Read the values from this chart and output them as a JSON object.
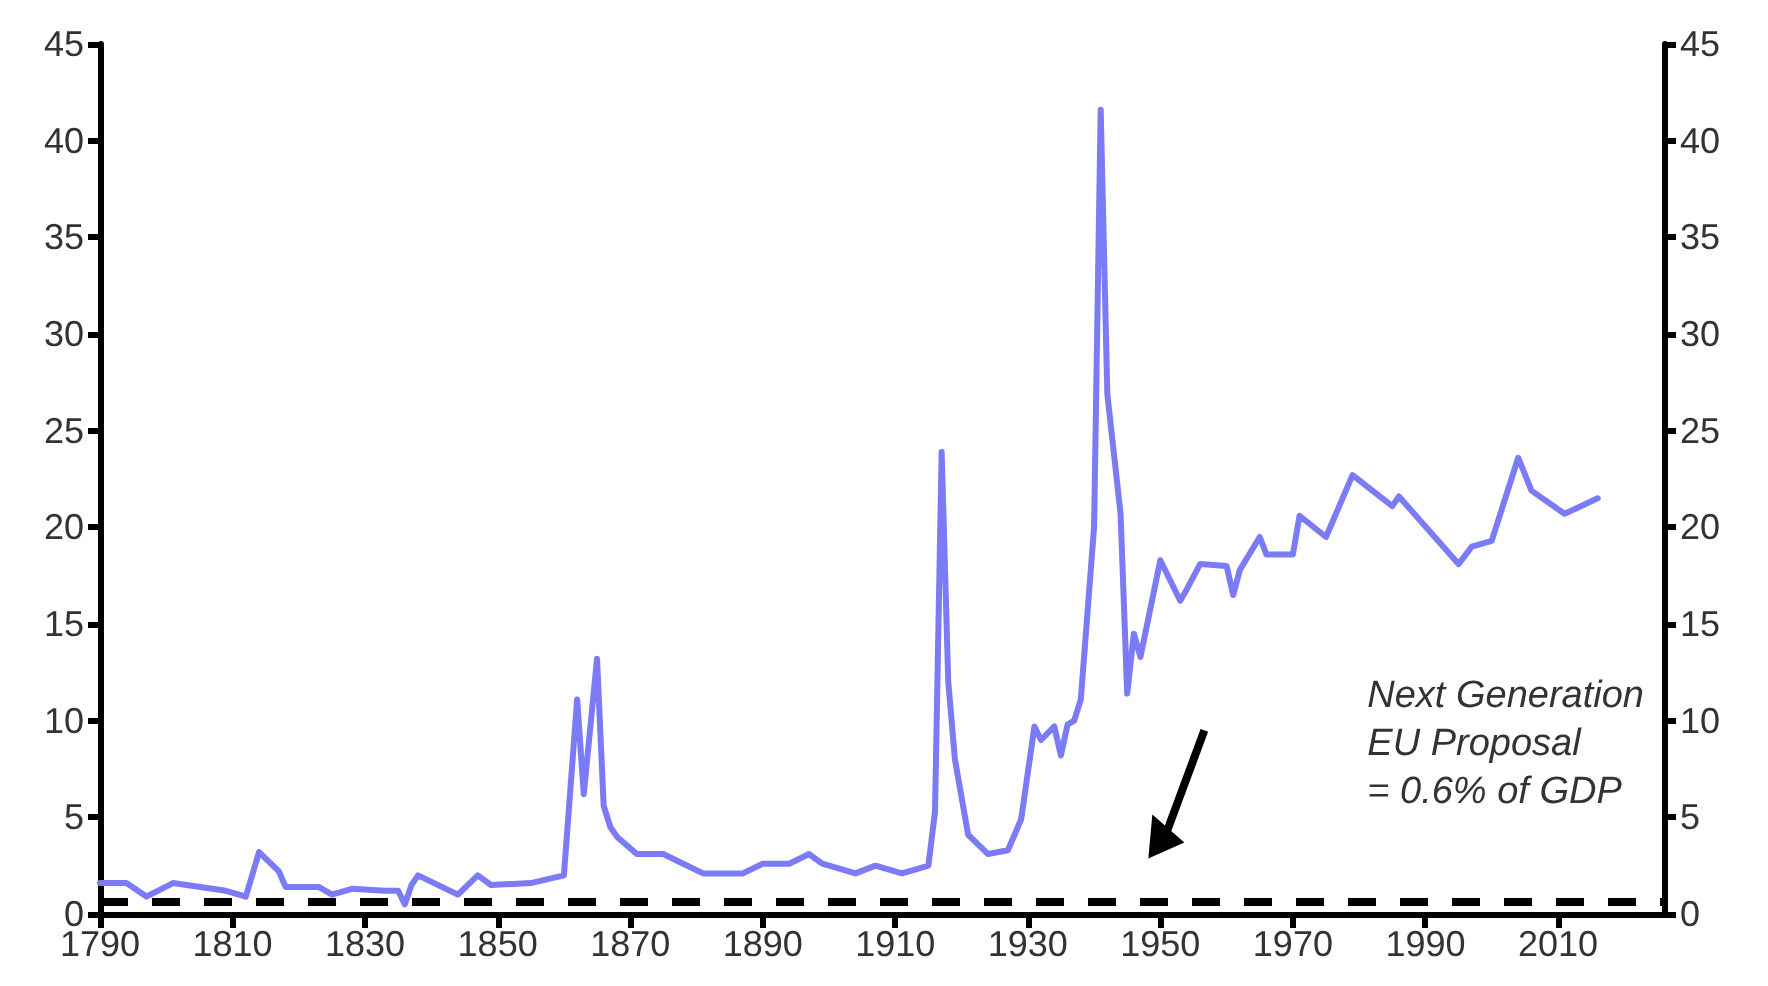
{
  "chart_data": {
    "type": "line",
    "x": [
      1790,
      1794,
      1797,
      1801,
      1809,
      1812,
      1814,
      1817,
      1818,
      1823,
      1825,
      1828,
      1833,
      1835,
      1836,
      1837,
      1838,
      1844,
      1847,
      1849,
      1855,
      1860,
      1862,
      1863,
      1865,
      1866,
      1867,
      1868,
      1871,
      1875,
      1878,
      1881,
      1885,
      1887,
      1890,
      1894,
      1897,
      1899,
      1904,
      1907,
      1911,
      1913,
      1915,
      1916,
      1917,
      1918,
      1919,
      1921,
      1924,
      1927,
      1929,
      1931,
      1932,
      1934,
      1935,
      1936,
      1937,
      1938,
      1940,
      1941,
      1942,
      1943,
      1944,
      1945,
      1946,
      1947,
      1950,
      1953,
      1954,
      1956,
      1960,
      1961,
      1962,
      1965,
      1966,
      1970,
      1971,
      1975,
      1979,
      1985,
      1986,
      1995,
      1997,
      2000,
      2004,
      2006,
      2011,
      2016
    ],
    "series": [
      {
        "color": "#7b7bf5",
        "values": [
          1.6,
          1.6,
          0.9,
          1.6,
          1.2,
          0.9,
          3.2,
          2.2,
          1.4,
          1.4,
          1.0,
          1.3,
          1.2,
          1.2,
          0.5,
          1.5,
          2.0,
          1.0,
          2.0,
          1.5,
          1.6,
          2.0,
          11.1,
          6.2,
          13.2,
          5.6,
          4.5,
          4.0,
          3.1,
          3.1,
          2.6,
          2.1,
          2.1,
          2.1,
          2.6,
          2.6,
          3.1,
          2.6,
          2.1,
          2.5,
          2.1,
          2.3,
          2.5,
          5.3,
          23.9,
          12.0,
          8.0,
          4.1,
          3.1,
          3.3,
          4.9,
          9.7,
          9.0,
          9.7,
          8.2,
          9.8,
          10.0,
          11.1,
          20.0,
          41.6,
          26.9,
          23.8,
          20.7,
          11.4,
          14.5,
          13.3,
          18.3,
          16.2,
          16.8,
          18.1,
          18.0,
          16.5,
          17.8,
          19.5,
          18.6,
          18.6,
          20.6,
          19.5,
          22.7,
          21.1,
          21.6,
          18.1,
          19.0,
          19.3,
          23.6,
          21.9,
          20.7,
          21.5
        ]
      }
    ],
    "xlim": [
      1790,
      2026
    ],
    "xticks": [
      1790,
      1810,
      1830,
      1850,
      1870,
      1890,
      1910,
      1930,
      1950,
      1970,
      1990,
      2010
    ],
    "ylim": [
      0,
      45
    ],
    "yticks": [
      0,
      5,
      10,
      15,
      20,
      25,
      30,
      35,
      40,
      45
    ],
    "y2lim": [
      0,
      45
    ],
    "y2ticks": [
      0,
      5,
      10,
      15,
      20,
      25,
      30,
      35,
      40,
      45
    ],
    "ref_lines": [
      {
        "axis": "y",
        "value": 0.6,
        "label": "Next Generation\nEU Proposal\n= 0.6% of GDP",
        "color": "#000000",
        "line_style": "dashed"
      }
    ],
    "grid": false,
    "marker": "none",
    "line_style": "solid"
  }
}
